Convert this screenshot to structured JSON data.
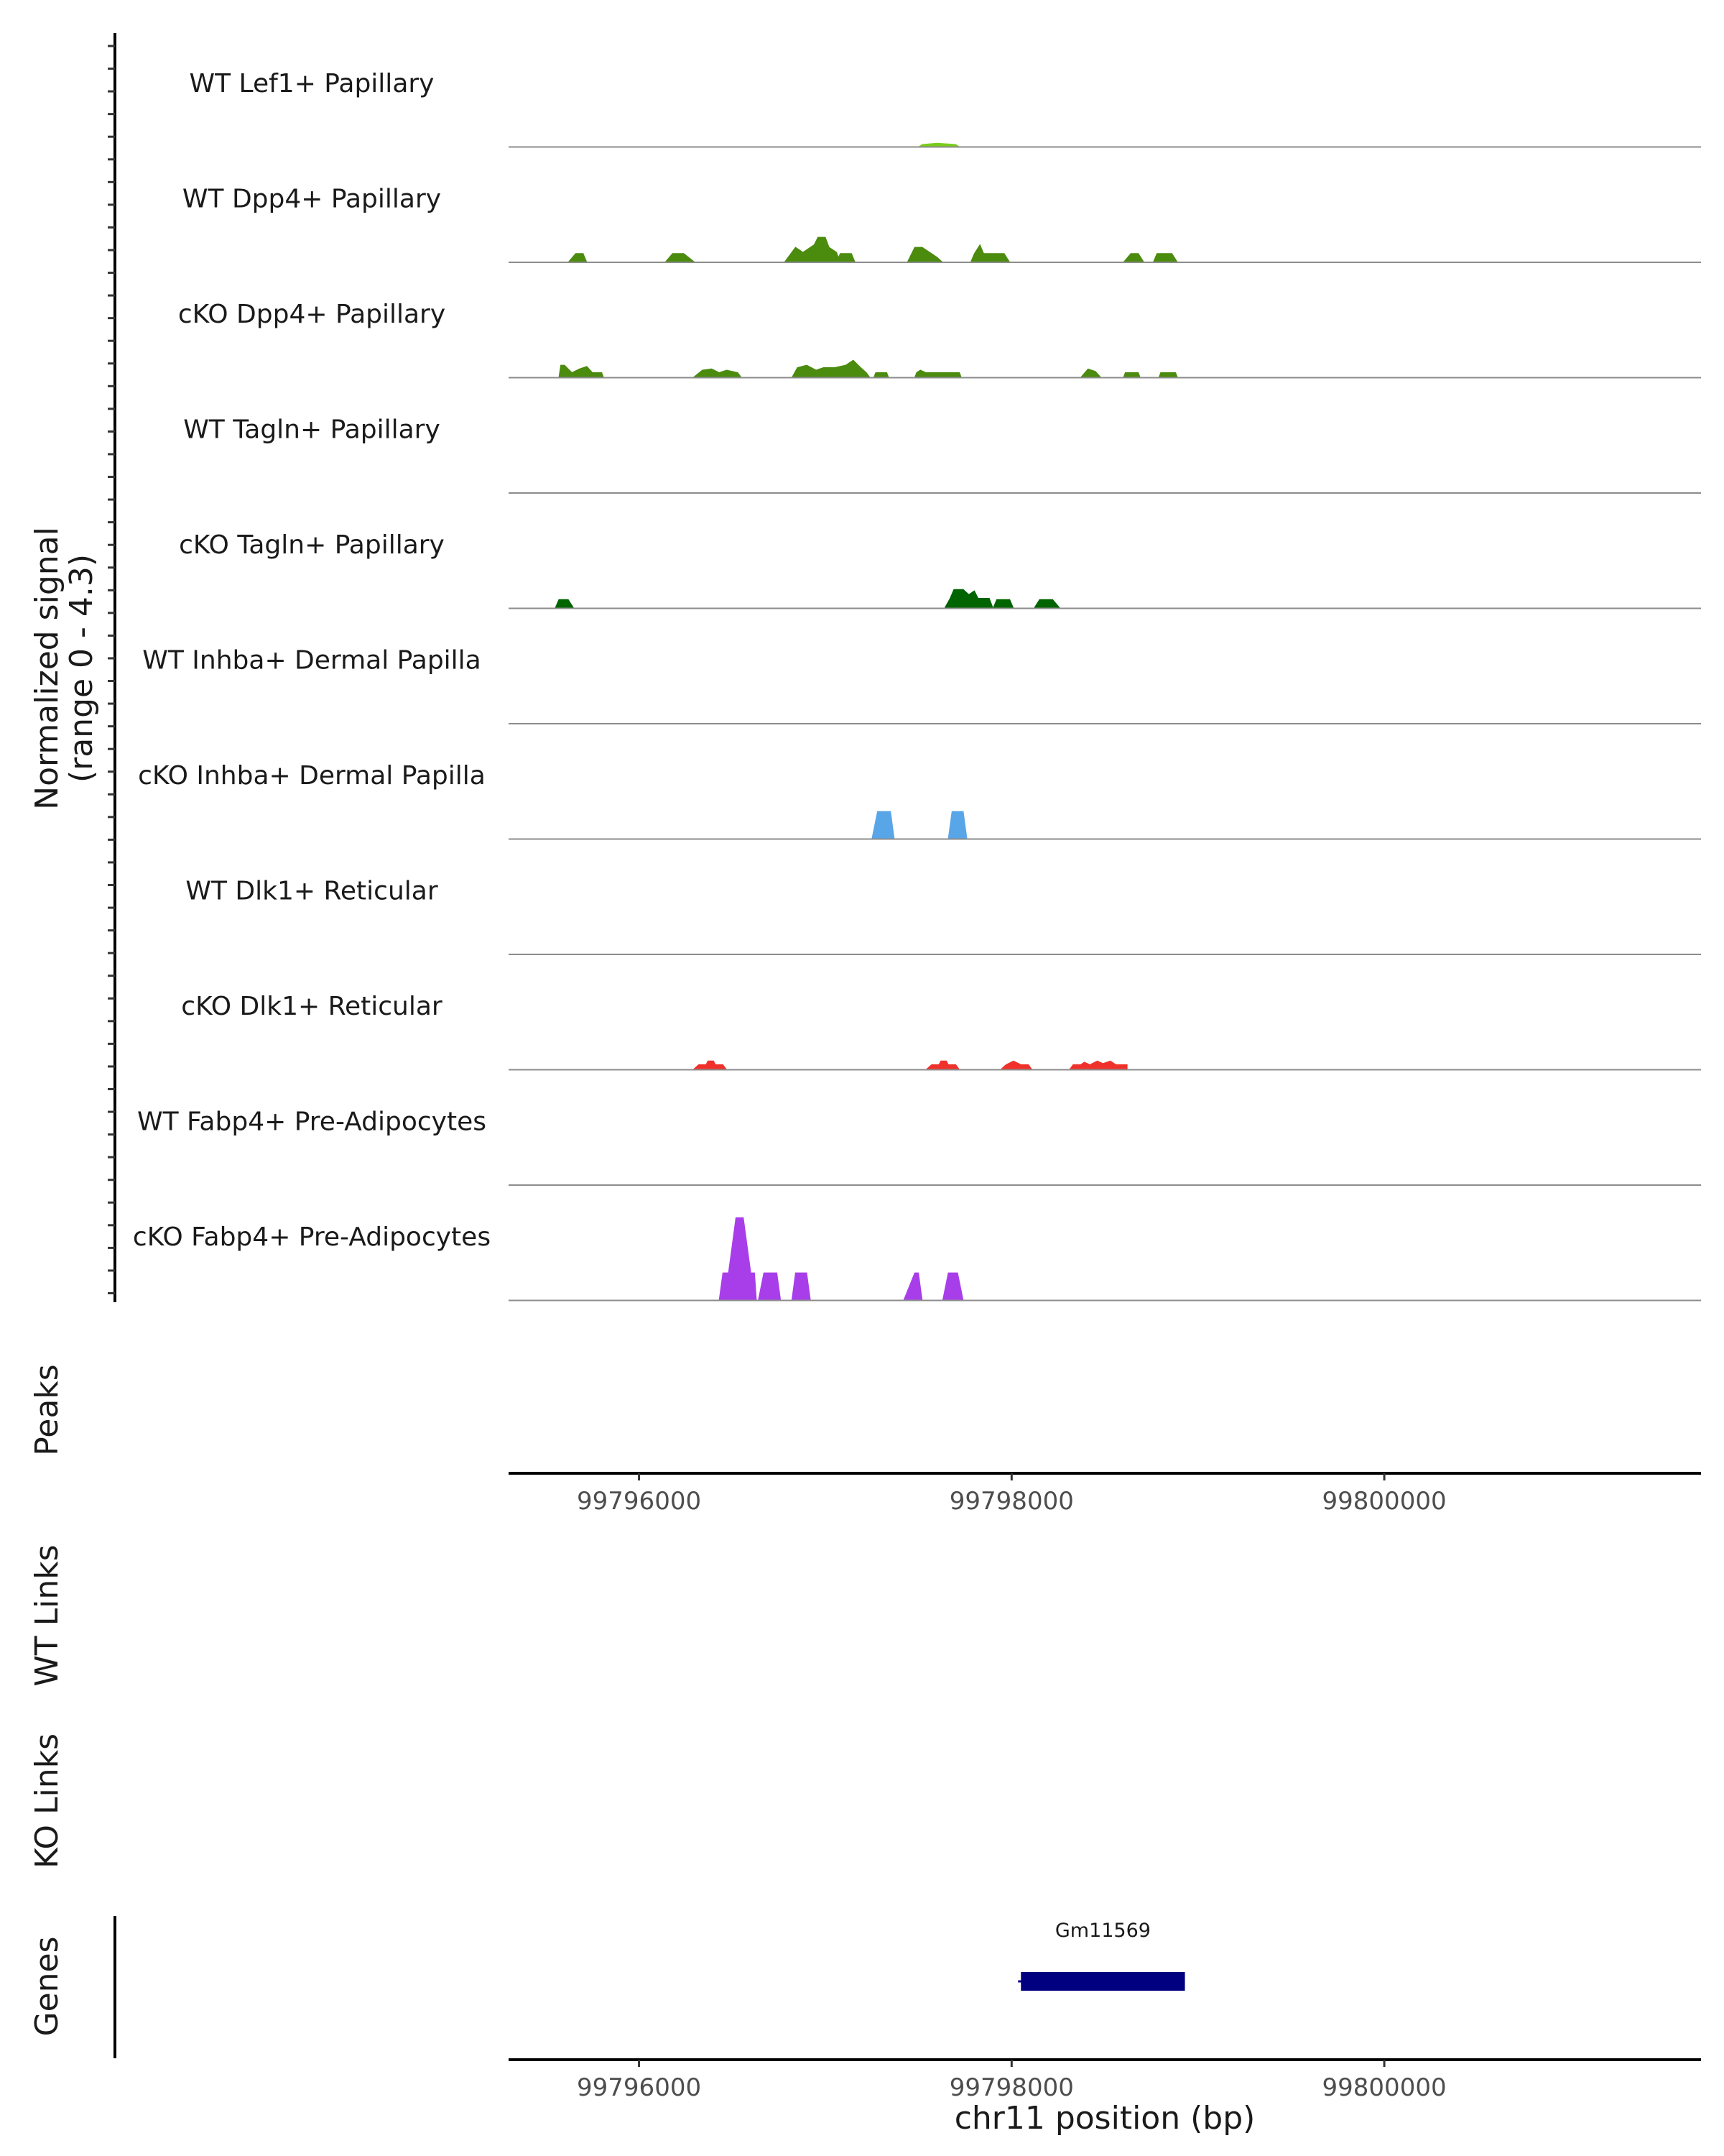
{
  "chart_data": {
    "type": "area",
    "title": "",
    "ylabel_line1": "Normalized signal",
    "ylabel_line2": "(range 0 - 4.3)",
    "ylim": [
      0,
      4.3
    ],
    "xlim": [
      99795300,
      99801700
    ],
    "chromosome": "chr11",
    "xlabel": "chr11 position (bp)",
    "x_ticks": [
      99796000,
      99798000,
      99800000
    ],
    "x_tick_labels": [
      "99796000",
      "99798000",
      "99800000"
    ],
    "tracks": [
      {
        "name": "WT Lef1+ Papillary",
        "color": "#7ACD1C",
        "segments": [
          [
            [
              99797500,
              0
            ],
            [
              99797520,
              0.1
            ],
            [
              99797600,
              0.15
            ],
            [
              99797700,
              0.1
            ],
            [
              99797720,
              0
            ]
          ]
        ]
      },
      {
        "name": "WT Dpp4+ Papillary",
        "color": "#4B8B0E",
        "segments": [
          [
            [
              99795620,
              0
            ],
            [
              99795660,
              0.35
            ],
            [
              99795700,
              0.35
            ],
            [
              99795720,
              0
            ]
          ],
          [
            [
              99796140,
              0
            ],
            [
              99796180,
              0.35
            ],
            [
              99796240,
              0.35
            ],
            [
              99796300,
              0
            ]
          ],
          [
            [
              99796780,
              0
            ],
            [
              99796840,
              0.6
            ],
            [
              99796880,
              0.4
            ],
            [
              99796940,
              0.7
            ],
            [
              99796960,
              1.0
            ],
            [
              99797000,
              1.0
            ],
            [
              99797020,
              0.6
            ],
            [
              99797060,
              0.4
            ],
            [
              99797080,
              0
            ]
          ],
          [
            [
              99797060,
              0
            ],
            [
              99797080,
              0.35
            ],
            [
              99797140,
              0.35
            ],
            [
              99797160,
              0
            ]
          ],
          [
            [
              99797440,
              0
            ],
            [
              99797480,
              0.6
            ],
            [
              99797520,
              0.6
            ],
            [
              99797560,
              0.4
            ],
            [
              99797600,
              0.2
            ],
            [
              99797630,
              0
            ]
          ],
          [
            [
              99797780,
              0
            ],
            [
              99797800,
              0.35
            ],
            [
              99797830,
              0.7
            ],
            [
              99797850,
              0.35
            ],
            [
              99797960,
              0.35
            ],
            [
              99797990,
              0
            ]
          ],
          [
            [
              99798600,
              0
            ],
            [
              99798640,
              0.35
            ],
            [
              99798680,
              0.35
            ],
            [
              99798710,
              0
            ]
          ],
          [
            [
              99798760,
              0
            ],
            [
              99798780,
              0.35
            ],
            [
              99798860,
              0.35
            ],
            [
              99798890,
              0
            ]
          ]
        ]
      },
      {
        "name": "cKO Dpp4+ Papillary",
        "color": "#4B8B0E",
        "segments": [
          [
            [
              99795570,
              0
            ],
            [
              99795580,
              0.5
            ],
            [
              99795600,
              0.5
            ],
            [
              99795640,
              0.2
            ],
            [
              99795680,
              0.35
            ],
            [
              99795720,
              0.45
            ],
            [
              99795750,
              0.2
            ],
            [
              99795800,
              0.2
            ],
            [
              99795810,
              0
            ]
          ],
          [
            [
              99796290,
              0
            ],
            [
              99796340,
              0.3
            ],
            [
              99796390,
              0.35
            ],
            [
              99796430,
              0.2
            ],
            [
              99796470,
              0.3
            ],
            [
              99796530,
              0.2
            ],
            [
              99796550,
              0
            ]
          ],
          [
            [
              99796820,
              0
            ],
            [
              99796850,
              0.4
            ],
            [
              99796900,
              0.5
            ],
            [
              99796950,
              0.3
            ],
            [
              99796990,
              0.4
            ],
            [
              99797050,
              0.4
            ],
            [
              99797110,
              0.5
            ],
            [
              99797150,
              0.7
            ],
            [
              99797190,
              0.4
            ],
            [
              99797220,
              0.2
            ],
            [
              99797240,
              0
            ]
          ],
          [
            [
              99797260,
              0
            ],
            [
              99797270,
              0.2
            ],
            [
              99797330,
              0.2
            ],
            [
              99797340,
              0
            ]
          ],
          [
            [
              99797480,
              0
            ],
            [
              99797490,
              0.2
            ],
            [
              99797510,
              0.3
            ],
            [
              99797540,
              0.2
            ],
            [
              99797720,
              0.2
            ],
            [
              99797730,
              0
            ]
          ],
          [
            [
              99798370,
              0
            ],
            [
              99798410,
              0.35
            ],
            [
              99798450,
              0.25
            ],
            [
              99798480,
              0
            ]
          ],
          [
            [
              99798600,
              0
            ],
            [
              99798610,
              0.2
            ],
            [
              99798680,
              0.2
            ],
            [
              99798690,
              0
            ]
          ],
          [
            [
              99798790,
              0
            ],
            [
              99798800,
              0.2
            ],
            [
              99798880,
              0.2
            ],
            [
              99798890,
              0
            ]
          ]
        ]
      },
      {
        "name": "WT Tagln+ Papillary",
        "color": "#006400",
        "segments": []
      },
      {
        "name": "cKO Tagln+ Papillary",
        "color": "#006400",
        "segments": [
          [
            [
              99795550,
              0
            ],
            [
              99795570,
              0.35
            ],
            [
              99795620,
              0.35
            ],
            [
              99795650,
              0
            ]
          ],
          [
            [
              99797640,
              0
            ],
            [
              99797670,
              0.4
            ],
            [
              99797690,
              0.75
            ],
            [
              99797740,
              0.75
            ],
            [
              99797770,
              0.55
            ],
            [
              99797800,
              0.7
            ],
            [
              99797820,
              0.4
            ],
            [
              99797880,
              0.4
            ],
            [
              99797900,
              0
            ]
          ],
          [
            [
              99797900,
              0
            ],
            [
              99797920,
              0.35
            ],
            [
              99797990,
              0.35
            ],
            [
              99798010,
              0
            ]
          ],
          [
            [
              99798120,
              0
            ],
            [
              99798150,
              0.35
            ],
            [
              99798220,
              0.35
            ],
            [
              99798260,
              0
            ]
          ]
        ]
      },
      {
        "name": "WT Inhba+ Dermal Papilla",
        "color": "#58A5E8",
        "segments": []
      },
      {
        "name": "cKO Inhba+ Dermal Papilla",
        "color": "#58A5E8",
        "segments": [
          [
            [
              99797250,
              0
            ],
            [
              99797280,
              1.1
            ],
            [
              99797350,
              1.1
            ],
            [
              99797370,
              0
            ]
          ],
          [
            [
              99797660,
              0
            ],
            [
              99797680,
              1.1
            ],
            [
              99797740,
              1.1
            ],
            [
              99797760,
              0
            ]
          ]
        ]
      },
      {
        "name": "WT Dlk1+ Reticular",
        "color": "#F0302A",
        "segments": []
      },
      {
        "name": "cKO Dlk1+ Reticular",
        "color": "#F0302A",
        "segments": [
          [
            [
              99796290,
              0
            ],
            [
              99796320,
              0.2
            ],
            [
              99796360,
              0.2
            ],
            [
              99796370,
              0.35
            ],
            [
              99796400,
              0.35
            ],
            [
              99796410,
              0.2
            ],
            [
              99796450,
              0.2
            ],
            [
              99796470,
              0
            ]
          ],
          [
            [
              99797540,
              0
            ],
            [
              99797570,
              0.2
            ],
            [
              99797610,
              0.2
            ],
            [
              99797620,
              0.35
            ],
            [
              99797650,
              0.35
            ],
            [
              99797660,
              0.2
            ],
            [
              99797700,
              0.2
            ],
            [
              99797720,
              0
            ]
          ],
          [
            [
              99797940,
              0
            ],
            [
              99797970,
              0.2
            ],
            [
              99798010,
              0.35
            ],
            [
              99798050,
              0.2
            ],
            [
              99798090,
              0.2
            ],
            [
              99798110,
              0
            ]
          ],
          [
            [
              99798310,
              0
            ],
            [
              99798330,
              0.2
            ],
            [
              99798370,
              0.2
            ],
            [
              99798390,
              0.3
            ],
            [
              99798420,
              0.2
            ],
            [
              99798460,
              0.35
            ],
            [
              99798490,
              0.25
            ],
            [
              99798530,
              0.35
            ],
            [
              99798560,
              0.2
            ],
            [
              99798620,
              0.2
            ],
            [
              99798620,
              0
            ]
          ]
        ]
      },
      {
        "name": "WT Fabp4+ Pre-Adipocytes",
        "color": "#A83EEA",
        "segments": []
      },
      {
        "name": "cKO Fabp4+ Pre-Adipocytes",
        "color": "#A83EEA",
        "segments": [
          [
            [
              99796430,
              0
            ],
            [
              99796450,
              1.1
            ],
            [
              99796480,
              1.1
            ],
            [
              99796500,
              2.2
            ],
            [
              99796520,
              3.3
            ],
            [
              99796560,
              3.3
            ],
            [
              99796580,
              2.2
            ],
            [
              99796600,
              1.1
            ],
            [
              99796620,
              1.1
            ],
            [
              99796630,
              0
            ]
          ],
          [
            [
              99796640,
              0
            ],
            [
              99796670,
              1.1
            ],
            [
              99796740,
              1.1
            ],
            [
              99796760,
              0
            ]
          ],
          [
            [
              99796820,
              0
            ],
            [
              99796840,
              1.1
            ],
            [
              99796900,
              1.1
            ],
            [
              99796920,
              0
            ]
          ],
          [
            [
              99797420,
              0
            ],
            [
              99797480,
              1.1
            ],
            [
              99797500,
              1.1
            ],
            [
              99797520,
              0
            ]
          ],
          [
            [
              99797630,
              0
            ],
            [
              99797660,
              1.1
            ],
            [
              99797710,
              1.1
            ],
            [
              99797740,
              0
            ]
          ]
        ]
      }
    ],
    "panels": {
      "peaks_label": "Peaks",
      "wt_links_label": "WT Links",
      "ko_links_label": "KO Links",
      "genes_label": "Genes"
    },
    "genes": [
      {
        "name": "Gm11569",
        "start": 99798050,
        "end": 99798930,
        "color": "#000080"
      }
    ]
  }
}
